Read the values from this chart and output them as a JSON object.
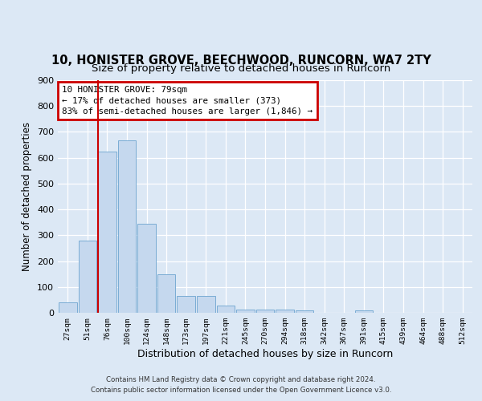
{
  "title1": "10, HONISTER GROVE, BEECHWOOD, RUNCORN, WA7 2TY",
  "title2": "Size of property relative to detached houses in Runcorn",
  "xlabel": "Distribution of detached houses by size in Runcorn",
  "ylabel": "Number of detached properties",
  "categories": [
    "27sqm",
    "51sqm",
    "76sqm",
    "100sqm",
    "124sqm",
    "148sqm",
    "173sqm",
    "197sqm",
    "221sqm",
    "245sqm",
    "270sqm",
    "294sqm",
    "318sqm",
    "342sqm",
    "367sqm",
    "391sqm",
    "415sqm",
    "439sqm",
    "464sqm",
    "488sqm",
    "512sqm"
  ],
  "values": [
    40,
    280,
    625,
    668,
    345,
    148,
    65,
    65,
    28,
    13,
    13,
    13,
    10,
    0,
    0,
    8,
    0,
    0,
    0,
    0,
    0
  ],
  "bar_color": "#c5d8ee",
  "bar_edge_color": "#7aacd4",
  "vline_x_index": 2,
  "vline_color": "#cc0000",
  "annotation_text": "10 HONISTER GROVE: 79sqm\n← 17% of detached houses are smaller (373)\n83% of semi-detached houses are larger (1,846) →",
  "annotation_box_color": "#cc0000",
  "background_color": "#dce8f5",
  "plot_bg_color": "#dce8f5",
  "ylim": [
    0,
    900
  ],
  "yticks": [
    0,
    100,
    200,
    300,
    400,
    500,
    600,
    700,
    800,
    900
  ],
  "footer_line1": "Contains HM Land Registry data © Crown copyright and database right 2024.",
  "footer_line2": "Contains public sector information licensed under the Open Government Licence v3.0.",
  "title1_fontsize": 10.5,
  "title2_fontsize": 9.5,
  "xlabel_fontsize": 9,
  "ylabel_fontsize": 8.5
}
